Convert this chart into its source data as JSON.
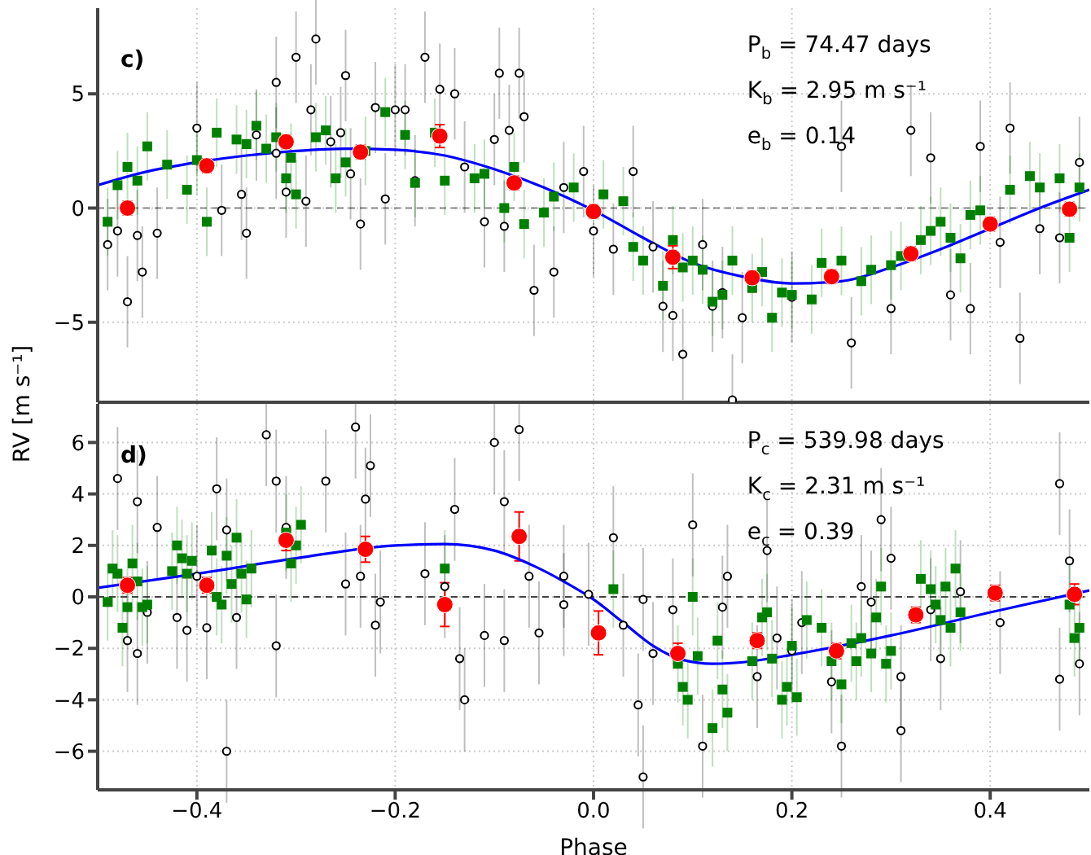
{
  "chart_data": [
    {
      "type": "scatter",
      "ylabel": "RV [m s⁻¹]",
      "xlim": [
        -0.5,
        0.5
      ],
      "xticks": [
        -0.4,
        -0.2,
        0,
        0.2,
        0.4
      ],
      "ylim": [
        -8.5,
        8.75
      ],
      "yticks": [
        -5,
        0,
        5
      ],
      "grid": true,
      "tick_labels": "y",
      "annotations": [
        "c)",
        "P$_{b}$ = 74.47 days",
        "K$_{b}$ = 2.95 m s⁻¹",
        "e$_{b}$ = 0.14"
      ],
      "ref_lines": [
        {
          "axis": "y",
          "value": 0,
          "color": "#888888",
          "line_style": "dashed"
        }
      ],
      "series": [
        {
          "type": "scatter",
          "color": "#000000",
          "marker": "circle",
          "x": [
            -0.49,
            -0.48,
            -0.47,
            -0.46,
            -0.455,
            -0.44,
            -0.4,
            -0.375,
            -0.355,
            -0.35,
            -0.34,
            -0.32,
            -0.32,
            -0.31,
            -0.3,
            -0.29,
            -0.285,
            -0.28,
            -0.265,
            -0.255,
            -0.25,
            -0.245,
            -0.235,
            -0.22,
            -0.21,
            -0.2,
            -0.19,
            -0.18,
            -0.17,
            -0.155,
            -0.14,
            -0.13,
            -0.11,
            -0.1,
            -0.095,
            -0.09,
            -0.085,
            -0.075,
            -0.07,
            -0.06,
            -0.04,
            -0.03,
            -0.01,
            0.0,
            0.02,
            0.04,
            0.06,
            0.07,
            0.08,
            0.09,
            0.11,
            0.12,
            0.13,
            0.14,
            0.15,
            0.2,
            0.25,
            0.26,
            0.3,
            0.32,
            0.34,
            0.36,
            0.38,
            0.39,
            0.41,
            0.42,
            0.43,
            0.45,
            0.47,
            0.49
          ],
          "values": [
            -1.6,
            -1.0,
            -4.1,
            -1.2,
            -2.8,
            -1.1,
            3.5,
            -0.1,
            0.6,
            -1.1,
            3.2,
            2.4,
            5.5,
            0.7,
            6.6,
            0.3,
            4.3,
            7.4,
            2.9,
            3.3,
            5.8,
            1.5,
            -0.7,
            4.4,
            0.4,
            4.3,
            4.3,
            1.2,
            6.6,
            5.2,
            5.0,
            1.8,
            -0.6,
            3.0,
            5.9,
            -0.8,
            3.4,
            5.9,
            4.0,
            -3.6,
            -2.8,
            0.9,
            1.6,
            -1.0,
            -1.8,
            1.6,
            -1.7,
            -4.3,
            -4.7,
            -6.4,
            -1.6,
            -4.3,
            -3.7,
            -8.4,
            -4.8,
            -3.9,
            2.7,
            -5.9,
            -4.4,
            3.4,
            2.2,
            -3.8,
            -4.4,
            2.7,
            -1.5,
            3.5,
            -5.7,
            -0.9,
            -1.3,
            2.0
          ],
          "errors": [
            2,
            2,
            2,
            2,
            2,
            2,
            2,
            2,
            2,
            2,
            2,
            2,
            2,
            2,
            2,
            2,
            2,
            2,
            2,
            2,
            2,
            2,
            2,
            2,
            2,
            2,
            2,
            2,
            2,
            2,
            2,
            2,
            2,
            2,
            2,
            2,
            2,
            2,
            2,
            2,
            2,
            2,
            2,
            2,
            2,
            2,
            2,
            2,
            2,
            2,
            2,
            2,
            2,
            2,
            2,
            2,
            2,
            2,
            2,
            2,
            2,
            2,
            2,
            2,
            2,
            2,
            2,
            2,
            2,
            2
          ]
        },
        {
          "type": "scatter",
          "color": "#008000",
          "marker": "square",
          "x": [
            -0.49,
            -0.48,
            -0.47,
            -0.46,
            -0.45,
            -0.43,
            -0.41,
            -0.4,
            -0.39,
            -0.38,
            -0.36,
            -0.35,
            -0.34,
            -0.33,
            -0.32,
            -0.31,
            -0.305,
            -0.3,
            -0.28,
            -0.27,
            -0.26,
            -0.25,
            -0.23,
            -0.21,
            -0.19,
            -0.18,
            -0.16,
            -0.15,
            -0.12,
            -0.11,
            -0.09,
            -0.08,
            -0.07,
            -0.05,
            -0.04,
            -0.02,
            0.01,
            0.03,
            0.04,
            0.05,
            0.07,
            0.08,
            0.09,
            0.1,
            0.11,
            0.12,
            0.13,
            0.14,
            0.16,
            0.17,
            0.18,
            0.19,
            0.2,
            0.22,
            0.23,
            0.25,
            0.27,
            0.28,
            0.3,
            0.31,
            0.33,
            0.34,
            0.35,
            0.36,
            0.37,
            0.38,
            0.39,
            0.42,
            0.44,
            0.45,
            0.47,
            0.48,
            0.49
          ],
          "values": [
            -0.6,
            1.0,
            1.8,
            1.2,
            2.7,
            1.9,
            0.8,
            2.1,
            -0.6,
            3.3,
            3.0,
            2.8,
            3.6,
            2.6,
            3.1,
            1.3,
            2.2,
            0.6,
            3.1,
            3.4,
            1.3,
            2.0,
            2.5,
            4.2,
            3.2,
            1.1,
            3.3,
            1.2,
            1.3,
            1.5,
            0.0,
            1.8,
            -0.7,
            -0.2,
            0.5,
            0.9,
            0.6,
            0.3,
            -1.7,
            -2.3,
            -3.4,
            -1.4,
            -2.6,
            -2.3,
            -2.7,
            -4.1,
            -3.8,
            -2.3,
            -3.5,
            -2.8,
            -4.8,
            -3.7,
            -3.8,
            -4.0,
            -2.4,
            -2.3,
            -3.2,
            -2.7,
            -2.5,
            -2.1,
            -1.4,
            -1.0,
            -0.6,
            -1.3,
            -2.2,
            -0.3,
            -0.1,
            0.8,
            1.4,
            0.9,
            1.3,
            -1.3,
            0.9
          ],
          "errors": [
            1.5,
            1.5,
            1.5,
            1.5,
            1.5,
            1.5,
            1.5,
            1.5,
            1.5,
            1.5,
            1.5,
            1.5,
            1.5,
            1.5,
            1.5,
            1.5,
            1.5,
            1.5,
            1.5,
            1.5,
            1.5,
            1.5,
            1.5,
            1.5,
            1.5,
            1.5,
            1.5,
            1.5,
            1.5,
            1.5,
            1.5,
            1.5,
            1.5,
            1.5,
            1.5,
            1.5,
            1.5,
            1.5,
            1.5,
            1.5,
            1.5,
            1.5,
            1.5,
            1.5,
            1.5,
            1.5,
            1.5,
            1.5,
            1.5,
            1.5,
            1.5,
            1.5,
            1.5,
            1.5,
            1.5,
            1.5,
            1.5,
            1.5,
            1.5,
            1.5,
            1.5,
            1.5,
            1.5,
            1.5,
            1.5,
            1.5,
            1.5,
            1.5,
            1.5,
            1.5,
            1.5,
            1.5,
            1.5
          ]
        },
        {
          "type": "scatter",
          "color": "#ff0000",
          "marker": "circle",
          "x": [
            -0.47,
            -0.39,
            -0.31,
            -0.235,
            -0.155,
            -0.08,
            0.0,
            0.08,
            0.16,
            0.24,
            0.32,
            0.4,
            0.48
          ],
          "values": [
            0,
            1.85,
            2.9,
            2.45,
            3.15,
            1.1,
            -0.15,
            -2.15,
            -3.05,
            -3.0,
            -2.0,
            -0.7,
            -0.05
          ],
          "errors": [
            0.3,
            0.3,
            0.3,
            0.3,
            0.5,
            0.3,
            0.3,
            0.5,
            0.3,
            0.3,
            0.3,
            0.3,
            0.3
          ]
        },
        {
          "type": "line",
          "color": "#0000ff",
          "marker": "none",
          "x": [
            -0.5,
            -0.45,
            -0.4,
            -0.35,
            -0.3,
            -0.25,
            -0.2,
            -0.15,
            -0.1,
            -0.05,
            0,
            0.05,
            0.1,
            0.15,
            0.2,
            0.25,
            0.3,
            0.35,
            0.4,
            0.45,
            0.5
          ],
          "values": [
            1.0,
            1.6,
            2.0,
            2.3,
            2.5,
            2.6,
            2.55,
            2.3,
            1.7,
            0.9,
            -0.1,
            -1.3,
            -2.4,
            -3.0,
            -3.3,
            -3.2,
            -2.6,
            -1.8,
            -0.9,
            0.0,
            0.8
          ]
        }
      ]
    },
    {
      "type": "scatter",
      "xlabel": "Phase",
      "xlim": [
        -0.5,
        0.5
      ],
      "xticks": [
        {
          "value": -0.4,
          "label": "−0.4"
        },
        {
          "value": -0.2,
          "label": "−0.2"
        },
        {
          "value": 0,
          "label": "0.0"
        },
        {
          "value": 0.2,
          "label": "0.2"
        },
        {
          "value": 0.4,
          "label": "0.4"
        }
      ],
      "ylim": [
        -7.5,
        7.5
      ],
      "yticks": [
        -6,
        -4,
        -2,
        0,
        2,
        4,
        6
      ],
      "grid": true,
      "annotations": [
        "d)",
        "P$_{c}$ = 539.98 days",
        "K$_{c}$ = 2.31 m s⁻¹",
        "e$_{c}$ = 0.39"
      ],
      "ref_lines": [
        {
          "axis": "y",
          "value": 0,
          "color": "#444444",
          "line_style": "dashed"
        }
      ],
      "series": [
        {
          "type": "scatter",
          "color": "#000000",
          "marker": "circle",
          "x": [
            -0.48,
            -0.47,
            -0.46,
            -0.46,
            -0.45,
            -0.44,
            -0.42,
            -0.41,
            -0.4,
            -0.39,
            -0.38,
            -0.37,
            -0.37,
            -0.36,
            -0.33,
            -0.32,
            -0.32,
            -0.31,
            -0.27,
            -0.25,
            -0.24,
            -0.235,
            -0.23,
            -0.225,
            -0.22,
            -0.215,
            -0.17,
            -0.15,
            -0.14,
            -0.135,
            -0.13,
            -0.11,
            -0.1,
            -0.09,
            -0.09,
            -0.075,
            -0.065,
            -0.055,
            -0.03,
            -0.03,
            -0.005,
            0.02,
            0.03,
            0.05,
            0.045,
            0.05,
            0.06,
            0.08,
            0.1,
            0.11,
            0.13,
            0.135,
            0.165,
            0.175,
            0.185,
            0.2,
            0.21,
            0.24,
            0.25,
            0.27,
            0.28,
            0.29,
            0.3,
            0.31,
            0.31,
            0.34,
            0.35,
            0.37,
            0.41,
            0.47,
            0.48,
            0.47,
            0.49
          ],
          "values": [
            4.6,
            -1.7,
            -2.2,
            3.7,
            -0.6,
            2.7,
            -0.8,
            -1.3,
            0.8,
            -1.2,
            4.2,
            2.6,
            -6.0,
            -0.8,
            6.3,
            4.5,
            -1.9,
            2.7,
            4.5,
            0.5,
            6.6,
            0.8,
            3.8,
            5.1,
            -1.1,
            -0.2,
            0.9,
            0.4,
            3.4,
            -2.4,
            -4.0,
            -1.5,
            6.0,
            3.7,
            -1.7,
            6.5,
            0.8,
            -1.4,
            0.8,
            -0.3,
            0.1,
            2.3,
            -1.1,
            -0.1,
            -4.2,
            -7.0,
            -2.2,
            -0.5,
            2.8,
            -5.8,
            -0.4,
            0.8,
            -3.1,
            1.8,
            -1.6,
            -2.1,
            -1.0,
            -3.3,
            -5.8,
            0.4,
            -0.2,
            3.0,
            1.5,
            -3.1,
            -5.2,
            -0.5,
            -2.4,
            0.2,
            -1.0,
            4.4,
            1.4,
            -3.2,
            -2.6
          ],
          "errors": [
            2,
            2,
            2,
            2,
            2,
            2,
            2,
            2,
            2,
            2,
            2,
            2,
            2,
            2,
            2,
            2,
            2,
            2,
            2,
            2,
            2,
            2,
            2,
            2,
            2,
            2,
            2,
            2,
            2,
            2,
            2,
            2,
            2,
            2,
            2,
            2,
            2,
            2,
            2,
            2,
            2,
            2,
            2,
            2,
            2,
            2,
            2,
            2,
            2,
            2,
            2,
            2,
            2,
            2,
            2,
            2,
            2,
            2,
            2,
            2,
            2,
            2,
            2,
            2,
            2,
            2,
            2,
            2,
            2,
            2,
            2,
            2,
            2
          ]
        },
        {
          "type": "scatter",
          "color": "#008000",
          "marker": "square",
          "x": [
            -0.49,
            -0.485,
            -0.48,
            -0.475,
            -0.47,
            -0.465,
            -0.46,
            -0.455,
            -0.45,
            -0.425,
            -0.42,
            -0.415,
            -0.41,
            -0.405,
            -0.385,
            -0.38,
            -0.375,
            -0.37,
            -0.365,
            -0.36,
            -0.355,
            -0.35,
            -0.345,
            -0.31,
            -0.305,
            -0.3,
            -0.295,
            -0.15,
            0.02,
            0.085,
            0.09,
            0.095,
            0.1,
            0.105,
            0.12,
            0.125,
            0.13,
            0.135,
            0.16,
            0.17,
            0.175,
            0.18,
            0.19,
            0.195,
            0.2,
            0.205,
            0.215,
            0.23,
            0.24,
            0.25,
            0.26,
            0.265,
            0.27,
            0.28,
            0.285,
            0.29,
            0.295,
            0.3,
            0.33,
            0.34,
            0.345,
            0.35,
            0.355,
            0.36,
            0.365,
            0.37,
            0.48,
            0.485,
            0.49
          ],
          "values": [
            -0.2,
            1.1,
            0.9,
            -1.2,
            -0.4,
            1.3,
            0.6,
            -0.4,
            -0.3,
            1.0,
            2.0,
            1.5,
            0.9,
            1.4,
            1.8,
            0.0,
            -0.3,
            1.6,
            0.5,
            2.3,
            0.9,
            -0.1,
            1.1,
            2.5,
            1.3,
            2.0,
            2.8,
            1.1,
            0.3,
            -2.6,
            -3.5,
            -4.0,
            0.0,
            -2.3,
            -5.1,
            -1.7,
            -3.6,
            -4.5,
            -2.5,
            -0.8,
            -0.6,
            -2.4,
            -4.0,
            -3.5,
            -1.9,
            -3.9,
            -0.9,
            -1.2,
            -2.5,
            -3.4,
            -1.8,
            -2.5,
            -1.6,
            -2.2,
            -0.8,
            0.4,
            -2.6,
            -2.1,
            0.7,
            0.3,
            -0.3,
            -0.9,
            0.4,
            -1.2,
            1.1,
            -0.6,
            -0.3,
            -1.6,
            -1.2
          ],
          "errors": [
            1.5,
            1.5,
            1.5,
            1.5,
            1.5,
            1.5,
            1.5,
            1.5,
            1.5,
            1.5,
            1.5,
            1.5,
            1.5,
            1.5,
            1.5,
            1.5,
            1.5,
            1.5,
            1.5,
            1.5,
            1.5,
            1.5,
            1.5,
            1.5,
            1.5,
            1.5,
            1.5,
            1.5,
            1.5,
            1.5,
            1.5,
            1.5,
            1.5,
            1.5,
            1.5,
            1.5,
            1.5,
            1.5,
            1.5,
            1.5,
            1.5,
            1.5,
            1.5,
            1.5,
            1.5,
            1.5,
            1.5,
            1.5,
            1.5,
            1.5,
            1.5,
            1.5,
            1.5,
            1.5,
            1.5,
            1.5,
            1.5,
            1.5,
            1.5,
            1.5,
            1.5,
            1.5,
            1.5,
            1.5,
            1.5,
            1.5,
            1.5,
            1.5,
            1.5
          ]
        },
        {
          "type": "scatter",
          "color": "#ff0000",
          "marker": "circle",
          "x": [
            -0.47,
            -0.39,
            -0.31,
            -0.23,
            -0.15,
            -0.075,
            0.005,
            0.085,
            0.165,
            0.245,
            0.325,
            0.405,
            0.485
          ],
          "values": [
            0.45,
            0.45,
            2.2,
            1.85,
            -0.3,
            2.35,
            -1.4,
            -2.2,
            -1.7,
            -2.1,
            -0.7,
            0.15,
            0.1
          ],
          "errors": [
            0.3,
            0.3,
            0.4,
            0.5,
            0.85,
            0.95,
            0.85,
            0.4,
            0.3,
            0.3,
            0.3,
            0.3,
            0.4
          ]
        },
        {
          "type": "line",
          "color": "#0000ff",
          "marker": "none",
          "x": [
            -0.5,
            -0.4,
            -0.3,
            -0.2,
            -0.15,
            -0.1,
            -0.06,
            -0.03,
            0,
            0.03,
            0.06,
            0.09,
            0.12,
            0.16,
            0.2,
            0.3,
            0.4,
            0.5
          ],
          "values": [
            0.35,
            0.9,
            1.5,
            2.0,
            2.05,
            1.8,
            1.2,
            0.6,
            -0.1,
            -1.0,
            -1.9,
            -2.45,
            -2.6,
            -2.5,
            -2.25,
            -1.5,
            -0.6,
            0.25
          ]
        }
      ]
    }
  ]
}
